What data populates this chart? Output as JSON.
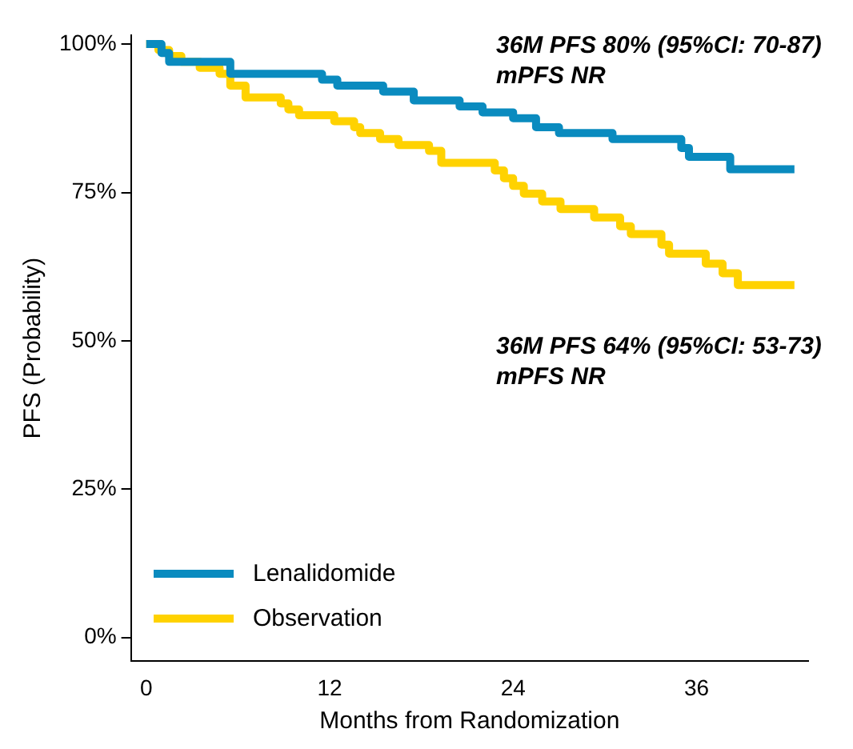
{
  "chart_data": {
    "type": "step",
    "xlabel": "Months from Randomization",
    "ylabel": "PFS (Probability)",
    "xlim": [
      -1,
      43.3
    ],
    "xticks": [
      0,
      12,
      24,
      36
    ],
    "ylim": [
      -4,
      101.5
    ],
    "yticks": [
      {
        "value": 0,
        "label": "0%"
      },
      {
        "value": 25,
        "label": "25%"
      },
      {
        "value": 50,
        "label": "50%"
      },
      {
        "value": 75,
        "label": "75%"
      },
      {
        "value": 100,
        "label": "100%"
      }
    ],
    "grid": false,
    "legend": "bottom left",
    "annotations": [
      "36M PFS 80% (95%CI: 70-87)",
      "mPFS NR",
      "36M PFS 64% (95%CI: 53-73)",
      "mPFS NR"
    ],
    "series": [
      {
        "name": "Lenalidomide",
        "color": "#0a8bbf",
        "x": [
          0,
          1,
          1.5,
          5.5,
          11.5,
          12.5,
          15.5,
          17.5,
          20.5,
          22,
          24,
          25.5,
          27,
          30.5,
          35,
          35.5,
          38.2,
          42.4
        ],
        "values": [
          100,
          98.5,
          97,
          95,
          94,
          93,
          92,
          90.5,
          89.5,
          88.5,
          87.5,
          86,
          85,
          84,
          82.5,
          81,
          78.9,
          78.9
        ]
      },
      {
        "name": "Observation",
        "color": "#ffd200",
        "x": [
          0,
          0.8,
          1.5,
          2.3,
          3.5,
          4.8,
          5.5,
          6.5,
          8.8,
          9.3,
          10,
          12.3,
          13.6,
          14,
          15.3,
          16.5,
          18.5,
          19.3,
          22.8,
          23.4,
          24,
          24.7,
          25.9,
          27.1,
          29.3,
          31,
          31.7,
          33.7,
          34.2,
          36.6,
          37.7,
          38.7,
          42.4
        ],
        "values": [
          100,
          99,
          98,
          97,
          96,
          95,
          93,
          91,
          90,
          89,
          88,
          87,
          86,
          85,
          84,
          83,
          82,
          80,
          78.7,
          77.4,
          76.1,
          74.8,
          73.5,
          72.2,
          70.8,
          69.3,
          68,
          66.2,
          64.7,
          63,
          61.4,
          59.4,
          59.4
        ]
      }
    ]
  }
}
